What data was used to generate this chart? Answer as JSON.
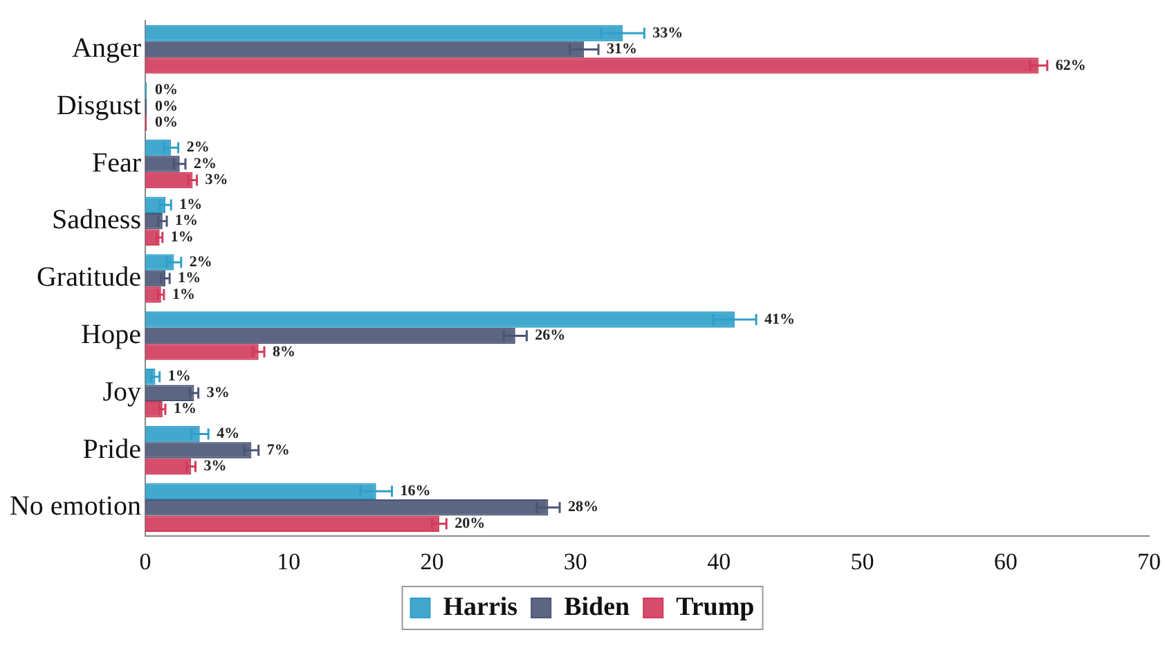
{
  "chart_data": {
    "type": "bar",
    "orientation": "horizontal",
    "categories": [
      "Anger",
      "Disgust",
      "Fear",
      "Sadness",
      "Gratitude",
      "Hope",
      "Joy",
      "Pride",
      "No emotion"
    ],
    "series": [
      {
        "name": "Harris",
        "color": "#2f9fc9",
        "values": [
          33.3,
          0.1,
          1.8,
          1.4,
          2.0,
          41.1,
          0.7,
          3.8,
          16.1
        ],
        "errors": [
          1.5,
          null,
          0.5,
          0.4,
          0.5,
          1.5,
          0.3,
          0.6,
          1.1
        ],
        "value_labels": [
          "33%",
          "0%",
          "2%",
          "1%",
          "2%",
          "41%",
          "1%",
          "4%",
          "16%"
        ]
      },
      {
        "name": "Biden",
        "color": "#4a5575",
        "values": [
          30.6,
          0.1,
          2.4,
          1.2,
          1.4,
          25.8,
          3.4,
          7.4,
          28.1
        ],
        "errors": [
          1.0,
          null,
          0.4,
          0.3,
          0.3,
          0.8,
          0.3,
          0.5,
          0.8
        ],
        "value_labels": [
          "31%",
          "0%",
          "2%",
          "1%",
          "1%",
          "26%",
          "3%",
          "7%",
          "28%"
        ]
      },
      {
        "name": "Trump",
        "color": "#d03a5a",
        "values": [
          62.3,
          0.1,
          3.3,
          1.0,
          1.1,
          7.9,
          1.2,
          3.2,
          20.5
        ],
        "errors": [
          0.6,
          null,
          0.3,
          0.2,
          0.2,
          0.4,
          0.2,
          0.3,
          0.5
        ],
        "value_labels": [
          "62%",
          "0%",
          "3%",
          "1%",
          "1%",
          "8%",
          "1%",
          "3%",
          "20%"
        ]
      }
    ],
    "xlim": [
      0,
      70
    ],
    "xticks": [
      0,
      10,
      20,
      30,
      40,
      50,
      60,
      70
    ],
    "grid": false,
    "legend": "bottom"
  }
}
